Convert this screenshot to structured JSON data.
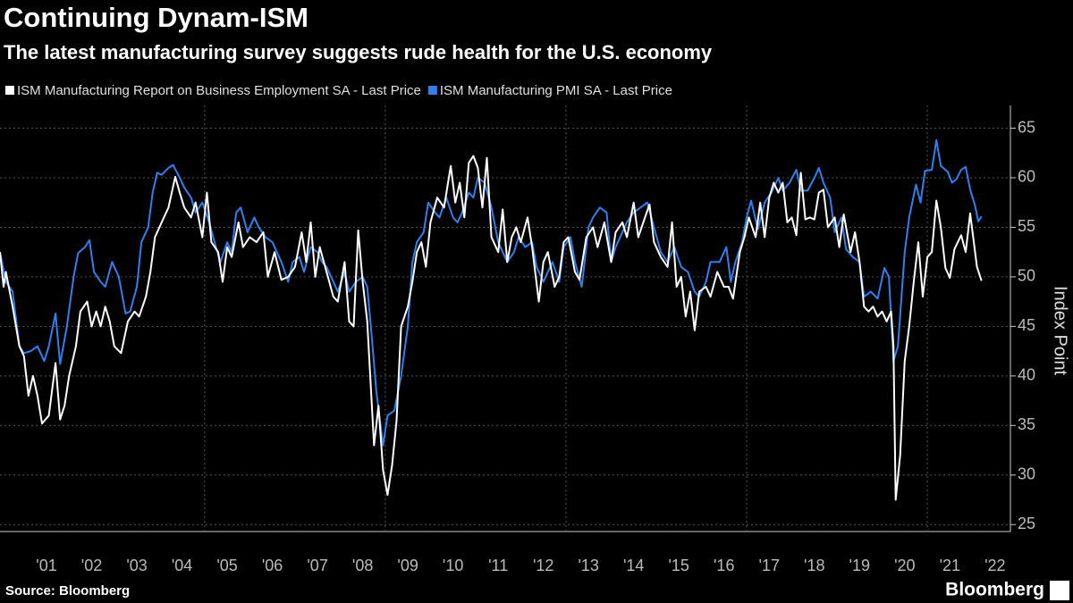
{
  "chart_data": {
    "type": "line",
    "title": "Continuing Dynam-ISM",
    "subtitle": "The latest manufacturing survey suggests rude health for the U.S. economy",
    "y_label": "Index Point",
    "source": "Source: Bloomberg",
    "logo": "Bloomberg",
    "xlim": [
      2000.47,
      2022.84
    ],
    "ylim": [
      24.3,
      67.3
    ],
    "yticks": [
      25,
      30,
      35,
      40,
      45,
      50,
      55,
      60,
      65
    ],
    "xticks": [
      {
        "value": 2001.5,
        "label": "'01"
      },
      {
        "value": 2002.5,
        "label": "'02"
      },
      {
        "value": 2003.5,
        "label": "'03"
      },
      {
        "value": 2004.5,
        "label": "'04"
      },
      {
        "value": 2005.5,
        "label": "'05"
      },
      {
        "value": 2006.5,
        "label": "'06"
      },
      {
        "value": 2007.5,
        "label": "'07"
      },
      {
        "value": 2008.5,
        "label": "'08"
      },
      {
        "value": 2009.5,
        "label": "'09"
      },
      {
        "value": 2010.5,
        "label": "'10"
      },
      {
        "value": 2011.5,
        "label": "'11"
      },
      {
        "value": 2012.5,
        "label": "'12"
      },
      {
        "value": 2013.5,
        "label": "'13"
      },
      {
        "value": 2014.5,
        "label": "'14"
      },
      {
        "value": 2015.5,
        "label": "'15"
      },
      {
        "value": 2016.5,
        "label": "'16"
      },
      {
        "value": 2017.5,
        "label": "'17"
      },
      {
        "value": 2018.5,
        "label": "'18"
      },
      {
        "value": 2019.5,
        "label": "'19"
      },
      {
        "value": 2020.5,
        "label": "'20"
      },
      {
        "value": 2021.5,
        "label": "'21"
      },
      {
        "value": 2022.5,
        "label": "'22"
      }
    ],
    "xgrid": [
      2005,
      2009,
      2013,
      2017,
      2021
    ],
    "grid": true,
    "legend": "top-left",
    "series": [
      {
        "name": "ISM Manufacturing Report on Business Employment SA - Last Price",
        "color": "#ffffff",
        "x": [
          2000.47,
          2000.55,
          2000.6,
          2000.75,
          2000.9,
          2001.0,
          2001.1,
          2001.2,
          2001.3,
          2001.4,
          2001.55,
          2001.7,
          2001.8,
          2001.9,
          2002.0,
          2002.15,
          2002.25,
          2002.4,
          2002.5,
          2002.6,
          2002.7,
          2002.8,
          2002.9,
          2003.0,
          2003.15,
          2003.3,
          2003.45,
          2003.55,
          2003.7,
          2003.8,
          2003.9,
          2004.05,
          2004.2,
          2004.35,
          2004.45,
          2004.55,
          2004.7,
          2004.8,
          2004.95,
          2005.05,
          2005.15,
          2005.3,
          2005.4,
          2005.5,
          2005.6,
          2005.75,
          2005.85,
          2006.0,
          2006.15,
          2006.3,
          2006.4,
          2006.55,
          2006.7,
          2006.85,
          2007.0,
          2007.15,
          2007.25,
          2007.35,
          2007.45,
          2007.55,
          2007.7,
          2007.85,
          2007.95,
          2008.1,
          2008.2,
          2008.3,
          2008.4,
          2008.5,
          2008.6,
          2008.75,
          2008.85,
          2008.95,
          2009.05,
          2009.15,
          2009.25,
          2009.35,
          2009.5,
          2009.6,
          2009.7,
          2009.8,
          2009.9,
          2010.0,
          2010.15,
          2010.3,
          2010.45,
          2010.55,
          2010.65,
          2010.75,
          2010.85,
          2010.95,
          2011.05,
          2011.15,
          2011.25,
          2011.35,
          2011.5,
          2011.6,
          2011.7,
          2011.8,
          2011.9,
          2012.0,
          2012.15,
          2012.25,
          2012.4,
          2012.5,
          2012.6,
          2012.75,
          2012.85,
          2012.95,
          2013.05,
          2013.2,
          2013.3,
          2013.45,
          2013.6,
          2013.7,
          2013.85,
          2014.0,
          2014.1,
          2014.25,
          2014.35,
          2014.5,
          2014.6,
          2014.75,
          2014.85,
          2014.95,
          2015.1,
          2015.25,
          2015.35,
          2015.45,
          2015.55,
          2015.65,
          2015.75,
          2015.85,
          2015.95,
          2016.1,
          2016.2,
          2016.35,
          2016.5,
          2016.6,
          2016.7,
          2016.85,
          2016.95,
          2017.05,
          2017.2,
          2017.3,
          2017.4,
          2017.5,
          2017.6,
          2017.7,
          2017.8,
          2017.9,
          2018.0,
          2018.1,
          2018.2,
          2018.3,
          2018.4,
          2018.5,
          2018.6,
          2018.7,
          2018.8,
          2018.95,
          2019.05,
          2019.15,
          2019.3,
          2019.4,
          2019.5,
          2019.6,
          2019.7,
          2019.8,
          2019.9,
          2020.0,
          2020.1,
          2020.2,
          2020.25,
          2020.3,
          2020.4,
          2020.5,
          2020.6,
          2020.7,
          2020.8,
          2020.9,
          2021.0,
          2021.1,
          2021.2,
          2021.3,
          2021.4,
          2021.5,
          2021.6,
          2021.75,
          2021.85,
          2021.95,
          2022.1,
          2022.2
        ],
        "values": [
          52.5,
          49,
          50.5,
          47,
          43,
          42,
          38,
          40,
          38,
          35.2,
          36,
          41.3,
          35.6,
          37,
          40,
          43,
          46.5,
          47.5,
          45,
          46.5,
          45,
          47,
          45.5,
          43,
          42.3,
          45.5,
          46.5,
          46,
          48,
          50.5,
          54,
          55.5,
          57,
          60.1,
          58.5,
          57,
          56,
          57.5,
          54,
          58.5,
          53.5,
          52.5,
          49.5,
          53,
          52,
          55.5,
          53,
          54,
          53.5,
          54.5,
          50,
          52.5,
          49.7,
          50,
          51,
          54.5,
          51.5,
          55.5,
          50,
          53,
          50.5,
          48,
          47.5,
          51.5,
          45.5,
          45,
          54.7,
          49.5,
          45.5,
          33,
          37,
          30.5,
          28,
          31,
          35.5,
          45,
          47,
          49.5,
          52.5,
          53.5,
          51,
          55.5,
          58,
          57,
          61.2,
          57.5,
          59.5,
          56,
          61.5,
          62.2,
          61,
          57,
          62,
          54,
          52.5,
          56.8,
          51.5,
          54,
          55,
          53.5,
          56,
          53,
          47.5,
          51.5,
          52.5,
          49,
          50,
          53.5,
          54,
          50.5,
          49.7,
          54,
          55,
          53,
          55.5,
          51.5,
          54.5,
          55.5,
          54,
          57.5,
          54,
          56,
          57.3,
          53.5,
          52,
          51,
          55.5,
          49,
          50,
          46,
          48.5,
          44.6,
          48.5,
          49,
          48,
          50.5,
          49,
          49,
          47.8,
          52.5,
          54,
          56,
          54,
          57.5,
          54,
          58,
          59.5,
          58.5,
          59.5,
          55.5,
          56,
          54.2,
          60.5,
          55.8,
          56,
          55.8,
          58.5,
          58.8,
          55,
          56,
          53,
          56.3,
          52.5,
          54.5,
          51.5,
          47,
          46.5,
          47,
          46,
          46.5,
          45.5,
          46.5,
          43,
          27.5,
          32,
          41.5,
          45,
          49.5,
          53.5,
          48,
          52,
          52.5,
          57.7,
          55,
          50.9,
          49.9,
          52.8,
          54.2,
          52.5,
          56.4,
          51,
          49.6
        ]
      },
      {
        "name": "ISM Manufacturing PMI SA - Last Price",
        "color": "#2f80ed",
        "x": [
          2000.47,
          2000.6,
          2000.75,
          2000.9,
          2001.0,
          2001.15,
          2001.3,
          2001.45,
          2001.55,
          2001.7,
          2001.8,
          2001.95,
          2002.1,
          2002.2,
          2002.35,
          2002.45,
          2002.55,
          2002.7,
          2002.8,
          2002.95,
          2003.1,
          2003.25,
          2003.35,
          2003.5,
          2003.6,
          2003.75,
          2003.85,
          2003.95,
          2004.05,
          2004.2,
          2004.3,
          2004.45,
          2004.55,
          2004.7,
          2004.8,
          2004.95,
          2005.1,
          2005.25,
          2005.35,
          2005.5,
          2005.6,
          2005.7,
          2005.8,
          2005.95,
          2006.1,
          2006.2,
          2006.35,
          2006.5,
          2006.6,
          2006.7,
          2006.85,
          2006.95,
          2007.1,
          2007.2,
          2007.35,
          2007.5,
          2007.6,
          2007.7,
          2007.8,
          2007.95,
          2008.1,
          2008.2,
          2008.35,
          2008.5,
          2008.6,
          2008.7,
          2008.8,
          2008.95,
          2009.05,
          2009.2,
          2009.35,
          2009.5,
          2009.6,
          2009.7,
          2009.85,
          2009.95,
          2010.1,
          2010.2,
          2010.35,
          2010.5,
          2010.6,
          2010.7,
          2010.85,
          2010.95,
          2011.05,
          2011.2,
          2011.35,
          2011.5,
          2011.6,
          2011.7,
          2011.85,
          2011.95,
          2012.1,
          2012.25,
          2012.35,
          2012.5,
          2012.6,
          2012.7,
          2012.85,
          2012.95,
          2013.1,
          2013.2,
          2013.35,
          2013.5,
          2013.6,
          2013.75,
          2013.9,
          2014.0,
          2014.1,
          2014.2,
          2014.35,
          2014.5,
          2014.65,
          2014.8,
          2014.95,
          2015.1,
          2015.25,
          2015.4,
          2015.55,
          2015.7,
          2015.85,
          2015.95,
          2016.1,
          2016.2,
          2016.4,
          2016.55,
          2016.65,
          2016.75,
          2016.9,
          2017.0,
          2017.1,
          2017.25,
          2017.4,
          2017.55,
          2017.7,
          2017.8,
          2017.95,
          2018.1,
          2018.2,
          2018.35,
          2018.5,
          2018.6,
          2018.7,
          2018.85,
          2018.95,
          2019.1,
          2019.2,
          2019.35,
          2019.5,
          2019.6,
          2019.75,
          2019.9,
          2020.05,
          2020.15,
          2020.25,
          2020.35,
          2020.5,
          2020.6,
          2020.75,
          2020.85,
          2020.95,
          2021.1,
          2021.2,
          2021.3,
          2021.45,
          2021.55,
          2021.65,
          2021.75,
          2021.85,
          2021.95,
          2022.05,
          2022.13,
          2022.2
        ],
        "values": [
          52.5,
          49.5,
          48.5,
          43,
          42.3,
          42.5,
          43,
          41.5,
          43,
          46.3,
          41.2,
          45,
          50,
          52.4,
          53,
          53.7,
          50.5,
          49.5,
          49,
          51.5,
          50,
          46.3,
          46.5,
          49,
          53.5,
          55,
          58.5,
          60.5,
          60.3,
          61,
          61.3,
          60,
          59,
          58,
          56.5,
          57.5,
          55.5,
          53,
          51.5,
          53.5,
          52.5,
          56.5,
          57,
          54.5,
          56,
          55,
          54,
          53.5,
          52.5,
          51.5,
          49.5,
          51.5,
          52,
          50.5,
          53,
          52.5,
          51.5,
          51,
          50,
          48.5,
          50.5,
          48.5,
          49.5,
          50,
          49,
          44,
          38.5,
          33,
          36,
          36.5,
          40,
          45,
          51.5,
          53.5,
          54.5,
          57.5,
          56.5,
          56,
          58,
          56,
          55.5,
          56.5,
          58.5,
          58,
          60,
          59.5,
          57,
          53.5,
          52.5,
          51.5,
          52.5,
          54,
          53,
          53.5,
          51,
          49.5,
          50.5,
          51.5,
          49.5,
          53,
          54,
          51.5,
          49,
          55,
          56,
          57,
          56.5,
          51.5,
          53,
          54,
          55.5,
          56.5,
          57,
          57.5,
          55,
          52.5,
          51.5,
          53,
          51,
          50.5,
          48.5,
          48,
          49.5,
          51.5,
          51.5,
          53,
          49.5,
          51.5,
          53.5,
          56,
          57.7,
          54.8,
          57.5,
          58.5,
          60,
          58.7,
          59.5,
          60.8,
          58.7,
          58.7,
          60,
          61,
          59.5,
          58,
          54.5,
          56,
          52.8,
          52,
          51.5,
          48,
          48.5,
          47.8,
          50.9,
          50,
          41.5,
          43,
          52.5,
          56,
          59.3,
          57.5,
          60.7,
          60.8,
          63.8,
          61.2,
          60.6,
          59.5,
          59.9,
          60.8,
          61.1,
          58.8,
          57.3,
          55.6,
          56.1
        ]
      }
    ]
  }
}
